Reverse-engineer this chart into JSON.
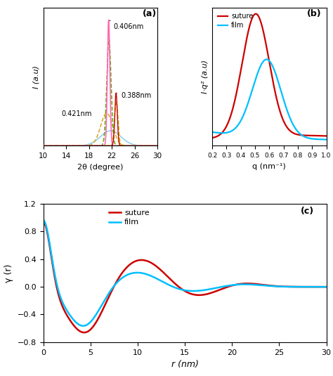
{
  "fig_width": 4.74,
  "fig_height": 5.35,
  "dpi": 100,
  "panel_a": {
    "label": "(a)",
    "xlabel": "2θ (degree)",
    "ylabel": "I (a.u)",
    "xlim": [
      10,
      30
    ],
    "ylim": [
      0,
      1.1
    ],
    "xticks": [
      10,
      14,
      18,
      22,
      26,
      30
    ],
    "annot_0406": {
      "text": "0.406nm"
    },
    "annot_0388": {
      "text": "0.388nm"
    },
    "annot_0421": {
      "text": "0.421nm"
    }
  },
  "panel_b": {
    "label": "(b)",
    "xlabel": "q (nm⁻¹)",
    "ylabel": "I·q² (a.u)",
    "xlim": [
      0.2,
      1.0
    ],
    "xticks": [
      0.2,
      0.3,
      0.4,
      0.5,
      0.6,
      0.7,
      0.8,
      0.9,
      1.0
    ],
    "suture_color": "#CC0000",
    "film_color": "#00BFFF",
    "legend_suture": "suture",
    "legend_film": "film"
  },
  "panel_c": {
    "label": "(c)",
    "xlabel": "r (nm)",
    "ylabel": "γ (r)",
    "xlim": [
      0,
      30
    ],
    "ylim": [
      -0.8,
      1.2
    ],
    "yticks": [
      -0.8,
      -0.4,
      0.0,
      0.4,
      0.8,
      1.2
    ],
    "xticks": [
      0,
      5,
      10,
      15,
      20,
      25,
      30
    ],
    "suture_color": "#CC0000",
    "film_color": "#00BFFF",
    "legend_suture": "suture",
    "legend_film": "film"
  }
}
